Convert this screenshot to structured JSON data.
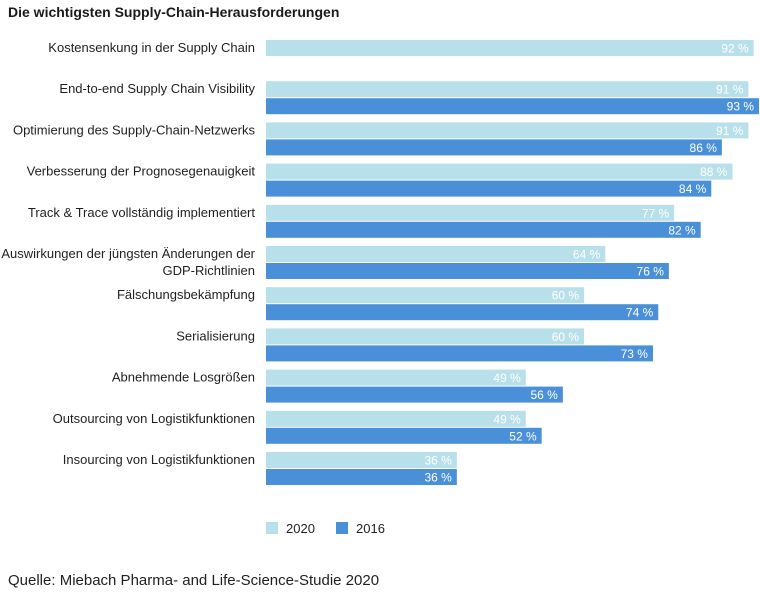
{
  "chart_data": {
    "type": "bar",
    "orientation": "horizontal",
    "title": "Die wichtigsten Supply-Chain-Herausforderungen",
    "categories": [
      [
        "Kostensenkung in der Supply Chain"
      ],
      [
        "End-to-end Supply Chain Visibility"
      ],
      [
        "Optimierung des Supply-Chain-Netzwerks"
      ],
      [
        "Verbesserung der Prognosegenauigkeit"
      ],
      [
        "Track & Trace vollständig implementiert"
      ],
      [
        "Auswirkungen der jüngsten Änderungen der",
        "GDP-Richtlinien"
      ],
      [
        "Fälschungsbekämpfung"
      ],
      [
        "Serialisierung"
      ],
      [
        "Abnehmende Losgrößen"
      ],
      [
        "Outsourcing von Logistikfunktionen"
      ],
      [
        "Insourcing von Logistikfunktionen"
      ]
    ],
    "series": [
      {
        "name": "2020",
        "color": "#b8e0ea",
        "label_color": "#ffffff",
        "values": [
          92,
          91,
          91,
          88,
          77,
          64,
          60,
          60,
          49,
          49,
          36
        ]
      },
      {
        "name": "2016",
        "color": "#4a90d9",
        "label_color": "#ffffff",
        "values": [
          null,
          93,
          86,
          84,
          82,
          76,
          74,
          73,
          56,
          52,
          36
        ]
      }
    ],
    "value_suffix": "%",
    "xlim": [
      0,
      93
    ],
    "legend_position": "bottom-left",
    "grid": false
  },
  "source": "Quelle: Miebach Pharma- and Life-Science-Studie 2020"
}
